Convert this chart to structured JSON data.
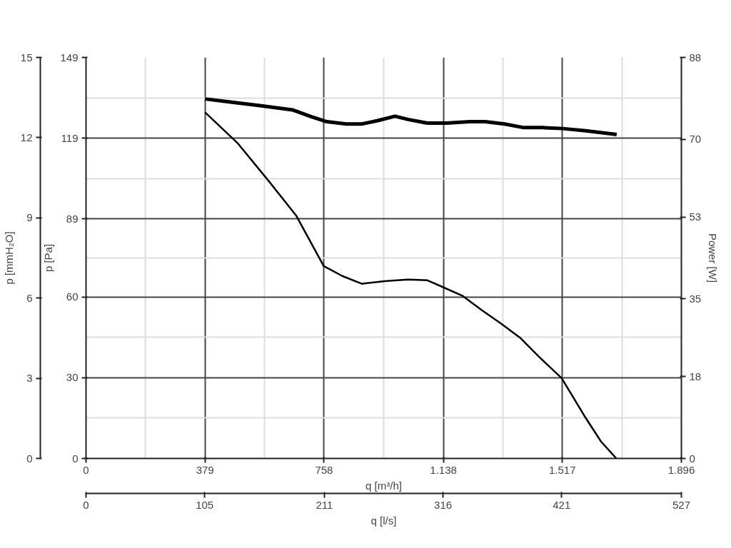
{
  "chart_data": {
    "type": "line",
    "xlabel": "q [m³/h]",
    "ylabel": "p [Pa]",
    "y2label": "Power [W]",
    "y3label": "p [mmH₂O]",
    "x2label": "q [l/s]",
    "xlim": [
      0,
      1896
    ],
    "xticks": [
      0,
      379,
      758,
      {
        "value": 1138,
        "label": "1.138"
      },
      {
        "value": 1517,
        "label": "1.517"
      },
      {
        "value": 1896,
        "label": "1.896"
      }
    ],
    "ylim": [
      0,
      149
    ],
    "yticks": [
      0,
      30,
      60,
      89,
      119,
      149
    ],
    "y2lim": [
      0,
      88
    ],
    "y2ticks": [
      0,
      18,
      35,
      53,
      70,
      88
    ],
    "y3lim": [
      0,
      15
    ],
    "y3ticks": [
      0,
      3,
      6,
      9,
      12,
      15
    ],
    "x2lim": [
      0,
      527
    ],
    "x2ticks": [
      0,
      105,
      211,
      316,
      421,
      527
    ],
    "grid": true,
    "marker": "none",
    "line_style": "solid",
    "series": [
      {
        "color": "#000000",
        "x": [
          379,
          484,
          583,
          669,
          757,
          816,
          878,
          952,
          1025,
          1087,
          1136,
          1198,
          1259,
          1321,
          1382,
          1444,
          1515,
          1591,
          1640,
          1689
        ],
        "values": [
          128.6,
          117.0,
          102.9,
          90.3,
          71.5,
          67.8,
          64.9,
          65.9,
          66.5,
          66.2,
          63.7,
          60.5,
          55.2,
          50.2,
          44.9,
          37.6,
          29.8,
          15.1,
          6.3,
          0
        ]
      },
      {
        "color": "#000000",
        "axis": "y2",
        "x": [
          379,
          460,
          558,
          657,
          718,
          767,
          829,
          878,
          927,
          984,
          1025,
          1087,
          1148,
          1222,
          1271,
          1333,
          1394,
          1456,
          1517,
          1591,
          1690
        ],
        "values": [
          78.9,
          78.2,
          77.4,
          76.5,
          75.0,
          73.9,
          73.4,
          73.4,
          74.1,
          75.1,
          74.4,
          73.6,
          73.6,
          73.9,
          73.9,
          73.4,
          72.6,
          72.6,
          72.4,
          71.9,
          71.1
        ]
      }
    ]
  }
}
